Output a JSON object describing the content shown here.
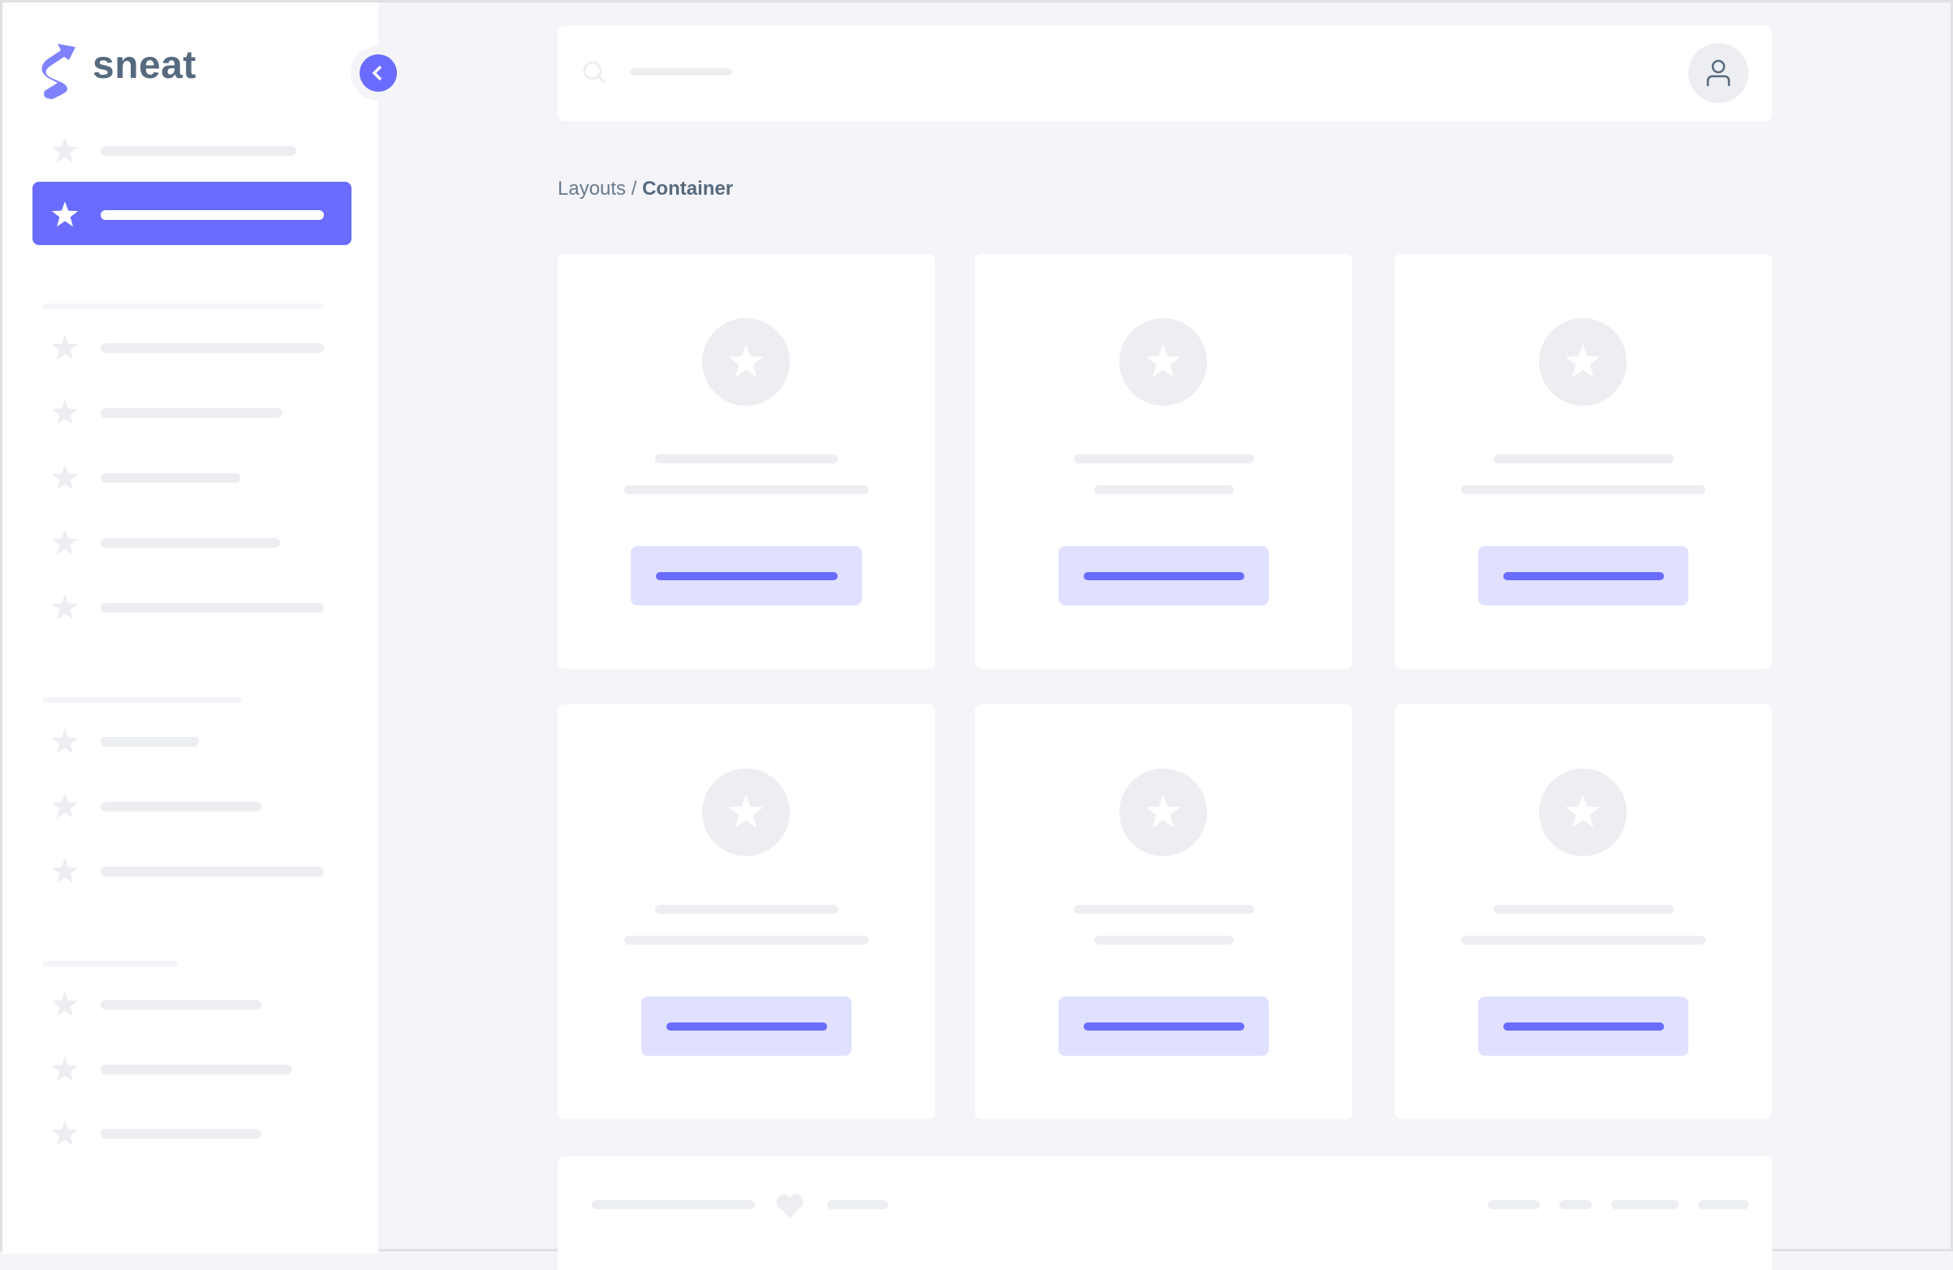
{
  "brand": {
    "name": "sneat",
    "logo_icon": "sneat-logo-icon",
    "accent": "#696cff"
  },
  "sidebar": {
    "collapse_icon": "chevron-left-icon",
    "items": [
      {
        "icon": "star-icon",
        "active": false
      },
      {
        "icon": "star-icon",
        "active": true
      },
      {
        "icon": "star-icon",
        "active": false
      },
      {
        "icon": "star-icon",
        "active": false
      },
      {
        "icon": "star-icon",
        "active": false
      },
      {
        "icon": "star-icon",
        "active": false
      },
      {
        "icon": "star-icon",
        "active": false
      },
      {
        "icon": "star-icon",
        "active": false
      },
      {
        "icon": "star-icon",
        "active": false
      },
      {
        "icon": "star-icon",
        "active": false
      },
      {
        "icon": "star-icon",
        "active": false
      },
      {
        "icon": "star-icon",
        "active": false
      },
      {
        "icon": "star-icon",
        "active": false
      }
    ]
  },
  "header": {
    "search_icon": "search-icon",
    "avatar_icon": "user-icon"
  },
  "breadcrumb": {
    "parent": "Layouts",
    "separator": "/",
    "current": "Container"
  },
  "cards": [
    {
      "icon": "star-icon"
    },
    {
      "icon": "star-icon"
    },
    {
      "icon": "star-icon"
    },
    {
      "icon": "star-icon"
    },
    {
      "icon": "star-icon"
    },
    {
      "icon": "star-icon"
    }
  ],
  "footer": {
    "heart_icon": "heart-icon"
  },
  "colors": {
    "primary": "#696cff",
    "primary_light": "#e0e0ff",
    "skeleton": "#eceef1",
    "background": "#f5f5f9",
    "text": "#566a7f"
  }
}
